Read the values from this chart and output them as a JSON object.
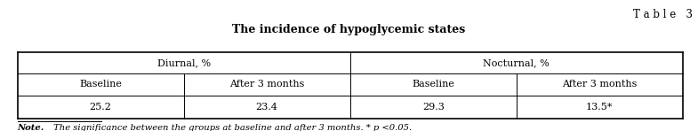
{
  "title": "The incidence of hypoglycemic states",
  "table_label": "T a b l e   3",
  "col_headers_row1": [
    "Diurnal, %",
    "Nocturnal, %"
  ],
  "col_headers_row2": [
    "Baseline",
    "After 3 months",
    "Baseline",
    "After 3 months"
  ],
  "data_row": [
    "25.2",
    "23.4",
    "29.3",
    "13.5*"
  ],
  "note_italic": "Note.",
  "note_rest": " The significance between the groups at baseline and after 3 months. * p <0.05.",
  "bg_color": "#ffffff",
  "text_color": "#000000",
  "font_family": "serif",
  "title_fontsize": 9.0,
  "header_fontsize": 8.0,
  "data_fontsize": 8.0,
  "note_fontsize": 7.2,
  "table_label_fontsize": 8.5
}
